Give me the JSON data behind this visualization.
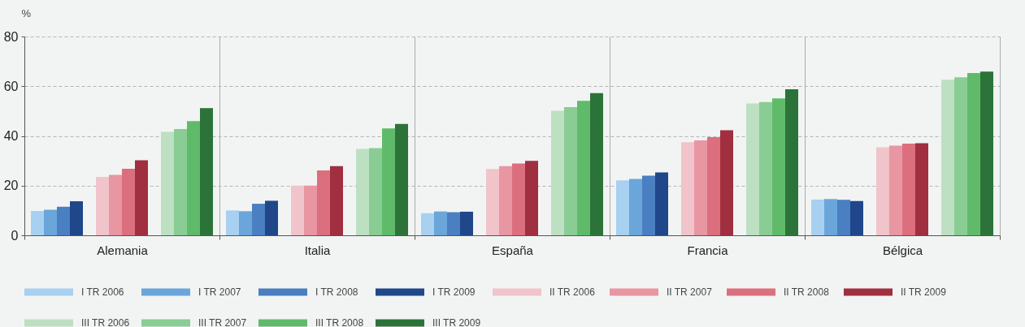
{
  "chart_data": {
    "type": "bar",
    "ylabel": "%",
    "categories": [
      "Alemania",
      "Italia",
      "España",
      "Francia",
      "Bélgica"
    ],
    "series": [
      {
        "name": "I TR 2006",
        "color": "#a8d0f0",
        "values": [
          9.8,
          10.0,
          8.9,
          22.1,
          14.4
        ]
      },
      {
        "name": "I TR 2007",
        "color": "#6aa6da",
        "values": [
          10.3,
          9.7,
          9.6,
          22.7,
          14.6
        ]
      },
      {
        "name": "I TR 2008",
        "color": "#4a7fc1",
        "values": [
          11.5,
          12.7,
          9.3,
          24.0,
          14.3
        ]
      },
      {
        "name": "I TR 2009",
        "color": "#1f478a",
        "values": [
          13.7,
          13.9,
          9.5,
          25.3,
          13.8
        ]
      },
      {
        "name": "II TR 2006",
        "color": "#f0c4ca",
        "values": [
          23.5,
          20.0,
          26.7,
          37.5,
          35.4
        ]
      },
      {
        "name": "II TR 2007",
        "color": "#e896a2",
        "values": [
          24.3,
          20.0,
          27.8,
          38.2,
          36.1
        ]
      },
      {
        "name": "II TR 2008",
        "color": "#dc6f7e",
        "values": [
          26.8,
          26.1,
          28.9,
          39.5,
          36.9
        ]
      },
      {
        "name": "II TR 2009",
        "color": "#a02f40",
        "values": [
          30.2,
          27.8,
          30.0,
          42.3,
          37.1
        ]
      },
      {
        "name": "III TR 2006",
        "color": "#bde0c2",
        "values": [
          41.6,
          34.8,
          50.1,
          53.1,
          62.6
        ]
      },
      {
        "name": "III TR 2007",
        "color": "#8acd94",
        "values": [
          42.8,
          35.1,
          51.6,
          53.6,
          63.6
        ]
      },
      {
        "name": "III TR 2008",
        "color": "#5fbb6a",
        "values": [
          46.0,
          43.0,
          54.1,
          55.1,
          65.3
        ]
      },
      {
        "name": "III TR 2009",
        "color": "#2c7339",
        "values": [
          51.2,
          44.8,
          57.2,
          58.8,
          65.9
        ]
      }
    ],
    "ylim": [
      0,
      80
    ],
    "yticks": [
      0,
      20,
      40,
      60,
      80
    ],
    "grid": true,
    "legend": "bottom"
  }
}
